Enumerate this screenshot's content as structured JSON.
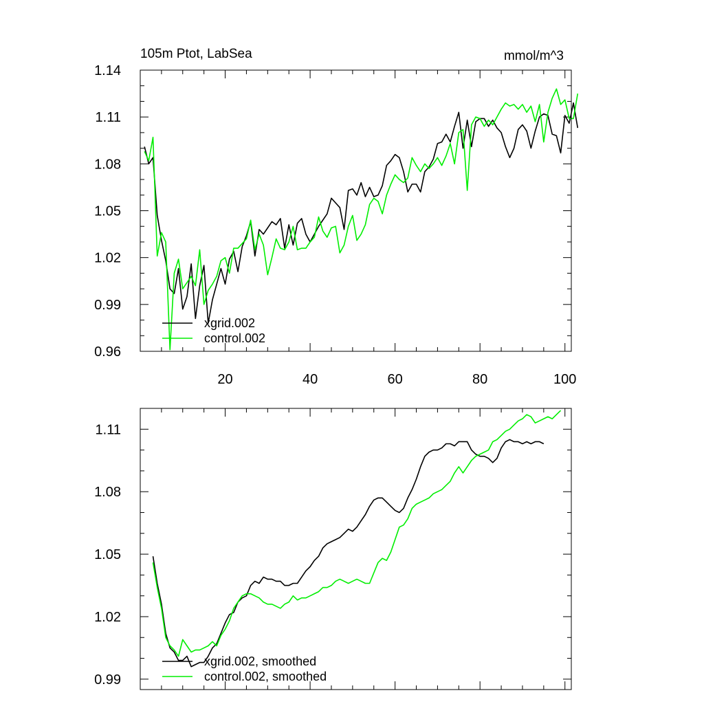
{
  "chart_data": [
    {
      "type": "line",
      "title": "105m Ptot, LabSea",
      "units": "mmol/m^3",
      "xlim": [
        0,
        101.5
      ],
      "ylim": [
        0.96,
        1.14
      ],
      "xticks": [
        20,
        40,
        60,
        80,
        100
      ],
      "xtick_labels": [
        "20",
        "40",
        "60",
        "80",
        "100"
      ],
      "yticks": [
        0.96,
        0.99,
        1.02,
        1.05,
        1.08,
        1.11,
        1.14
      ],
      "ytick_labels": [
        "0.96",
        "0.99",
        "1.02",
        "1.05",
        "1.08",
        "1.11",
        "1.14"
      ],
      "legend": [
        "xgrid.002",
        "control.002"
      ],
      "series": [
        {
          "name": "xgrid.002",
          "color": "#000000",
          "x_start": 1,
          "values": [
            1.091,
            1.08,
            1.084,
            1.047,
            1.031,
            1.018,
            1.0,
            0.997,
            1.013,
            0.987,
            0.995,
            1.016,
            0.981,
            1.002,
            1.015,
            0.978,
            0.993,
            1.003,
            1.013,
            1.003,
            1.019,
            1.024,
            1.011,
            1.027,
            1.034,
            1.043,
            1.021,
            1.038,
            1.035,
            1.039,
            1.043,
            1.041,
            1.045,
            1.026,
            1.041,
            1.028,
            1.042,
            1.045,
            1.035,
            1.03,
            1.035,
            1.04,
            1.044,
            1.048,
            1.058,
            1.055,
            1.052,
            1.038,
            1.063,
            1.064,
            1.06,
            1.068,
            1.059,
            1.065,
            1.059,
            1.06,
            1.066,
            1.079,
            1.082,
            1.086,
            1.084,
            1.075,
            1.062,
            1.067,
            1.067,
            1.062,
            1.075,
            1.078,
            1.083,
            1.093,
            1.094,
            1.099,
            1.094,
            1.104,
            1.113,
            1.09,
            1.108,
            1.091,
            1.107,
            1.109,
            1.109,
            1.104,
            1.108,
            1.103,
            1.1,
            1.091,
            1.084,
            1.09,
            1.102,
            1.105,
            1.101,
            1.09,
            1.101,
            1.11,
            1.112,
            1.111,
            1.099,
            1.098,
            1.087,
            1.111,
            1.106,
            1.119,
            1.103
          ]
        },
        {
          "name": "control.002",
          "color": "#00ee00",
          "x_start": 1,
          "values": [
            1.088,
            1.082,
            1.097,
            1.021,
            1.036,
            1.03,
            0.961,
            1.01,
            1.019,
            1.0,
            1.004,
            1.008,
            1.002,
            1.025,
            0.99,
            0.999,
            1.003,
            1.008,
            1.018,
            1.02,
            1.01,
            1.026,
            1.026,
            1.029,
            1.032,
            1.044,
            1.025,
            1.035,
            1.028,
            1.009,
            1.02,
            1.032,
            1.026,
            1.025,
            1.03,
            1.04,
            1.025,
            1.026,
            1.026,
            1.03,
            1.033,
            1.046,
            1.037,
            1.033,
            1.039,
            1.04,
            1.023,
            1.028,
            1.04,
            1.047,
            1.031,
            1.035,
            1.041,
            1.054,
            1.058,
            1.056,
            1.048,
            1.06,
            1.067,
            1.073,
            1.07,
            1.068,
            1.071,
            1.084,
            1.079,
            1.075,
            1.08,
            1.077,
            1.08,
            1.084,
            1.079,
            1.085,
            1.093,
            1.08,
            1.1,
            1.102,
            1.063,
            1.105,
            1.11,
            1.109,
            1.104,
            1.108,
            1.105,
            1.11,
            1.115,
            1.119,
            1.117,
            1.118,
            1.115,
            1.118,
            1.113,
            1.117,
            1.107,
            1.118,
            1.094,
            1.113,
            1.122,
            1.128,
            1.118,
            1.121,
            1.109,
            1.109,
            1.125
          ]
        }
      ]
    },
    {
      "type": "line",
      "title": "",
      "xlim": [
        0,
        101.5
      ],
      "ylim": [
        0.985,
        1.12
      ],
      "xticks": [
        20,
        40,
        60,
        80,
        100
      ],
      "yticks": [
        0.99,
        1.02,
        1.05,
        1.08,
        1.11
      ],
      "ytick_labels": [
        "0.99",
        "1.02",
        "1.05",
        "1.08",
        "1.11"
      ],
      "legend": [
        "xgrid.002, smoothed",
        "control.002, smoothed"
      ],
      "series": [
        {
          "name": "xgrid.002, smoothed",
          "color": "#000000",
          "x_start": 3,
          "values": [
            1.049,
            1.036,
            1.026,
            1.012,
            1.005,
            1.003,
            0.999,
            0.999,
            1.001,
            0.996,
            0.997,
            0.998,
            0.998,
            1.001,
            1.005,
            1.007,
            1.012,
            1.017,
            1.021,
            1.022,
            1.027,
            1.029,
            1.03,
            1.035,
            1.037,
            1.036,
            1.039,
            1.038,
            1.038,
            1.037,
            1.037,
            1.035,
            1.035,
            1.036,
            1.036,
            1.039,
            1.042,
            1.044,
            1.047,
            1.049,
            1.053,
            1.055,
            1.056,
            1.057,
            1.058,
            1.06,
            1.062,
            1.061,
            1.063,
            1.066,
            1.069,
            1.073,
            1.076,
            1.077,
            1.077,
            1.075,
            1.073,
            1.071,
            1.07,
            1.072,
            1.077,
            1.081,
            1.086,
            1.092,
            1.097,
            1.099,
            1.1,
            1.1,
            1.101,
            1.103,
            1.103,
            1.102,
            1.104,
            1.104,
            1.104,
            1.1,
            1.098,
            1.097,
            1.097,
            1.096,
            1.094,
            1.096,
            1.101,
            1.104,
            1.105,
            1.104,
            1.104,
            1.103,
            1.104,
            1.103,
            1.104,
            1.104,
            1.103
          ]
        },
        {
          "name": "control.002, smoothed",
          "color": "#00ee00",
          "x_start": 3,
          "values": [
            1.046,
            1.034,
            1.024,
            1.01,
            1.006,
            1.004,
            1.001,
            1.009,
            1.006,
            1.003,
            1.004,
            1.004,
            1.005,
            1.006,
            1.008,
            1.006,
            1.011,
            1.014,
            1.018,
            1.024,
            1.027,
            1.03,
            1.031,
            1.031,
            1.03,
            1.029,
            1.027,
            1.026,
            1.026,
            1.025,
            1.024,
            1.026,
            1.027,
            1.03,
            1.028,
            1.029,
            1.029,
            1.03,
            1.031,
            1.032,
            1.034,
            1.034,
            1.035,
            1.037,
            1.038,
            1.037,
            1.036,
            1.037,
            1.038,
            1.037,
            1.036,
            1.036,
            1.041,
            1.046,
            1.048,
            1.047,
            1.051,
            1.057,
            1.063,
            1.064,
            1.067,
            1.072,
            1.074,
            1.075,
            1.076,
            1.077,
            1.079,
            1.08,
            1.081,
            1.083,
            1.085,
            1.089,
            1.092,
            1.089,
            1.092,
            1.095,
            1.097,
            1.098,
            1.099,
            1.1,
            1.104,
            1.105,
            1.107,
            1.109,
            1.11,
            1.112,
            1.114,
            1.115,
            1.117,
            1.116,
            1.113,
            1.114,
            1.115,
            1.116,
            1.115,
            1.117,
            1.119
          ]
        }
      ]
    }
  ]
}
